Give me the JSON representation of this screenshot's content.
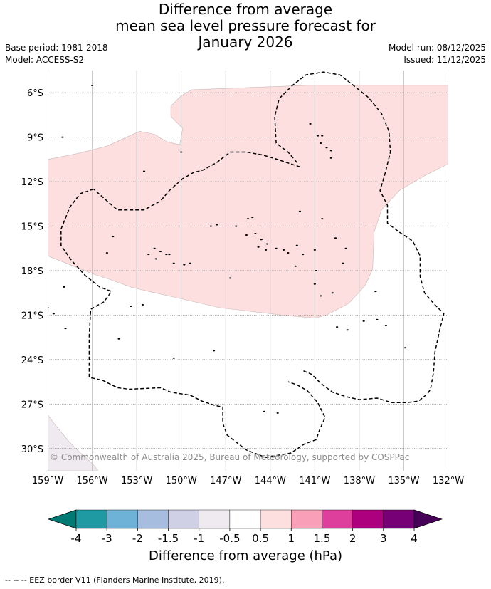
{
  "title": {
    "line1": "Difference from average",
    "line2": "mean sea level pressure forecast for",
    "line3": "January 2026"
  },
  "meta": {
    "base_period": "Base period: 1981-2018",
    "model": "Model: ACCESS-S2",
    "model_run": "Model run: 08/12/2025",
    "issued": "Issued: 11/12/2025"
  },
  "map": {
    "lon_range": [
      -159,
      -132
    ],
    "lat_range": [
      -31.5,
      -4.5
    ],
    "lat_ticks": [
      {
        "value": -6,
        "label": "6°S"
      },
      {
        "value": -9,
        "label": "9°S"
      },
      {
        "value": -12,
        "label": "12°S"
      },
      {
        "value": -15,
        "label": "15°S"
      },
      {
        "value": -18,
        "label": "18°S"
      },
      {
        "value": -21,
        "label": "21°S"
      },
      {
        "value": -24,
        "label": "24°S"
      },
      {
        "value": -27,
        "label": "27°S"
      },
      {
        "value": -30,
        "label": "30°S"
      }
    ],
    "lon_ticks": [
      {
        "value": -159,
        "label": "159°W"
      },
      {
        "value": -156,
        "label": "156°W"
      },
      {
        "value": -153,
        "label": "153°W"
      },
      {
        "value": -150,
        "label": "150°W"
      },
      {
        "value": -147,
        "label": "147°W"
      },
      {
        "value": -144,
        "label": "144°W"
      },
      {
        "value": -141,
        "label": "141°W"
      },
      {
        "value": -138,
        "label": "138°W"
      },
      {
        "value": -135,
        "label": "135°W"
      },
      {
        "value": -132,
        "label": "132°W"
      }
    ],
    "copyright": "© Commonwealth of Australia 2025, Bureau of Meteorology, supported by COSPPac",
    "anomaly_regions": [
      {
        "category": "0.5 to 1",
        "color": "#fddfdf",
        "outline": [
          [
            -159,
            -10.5
          ],
          [
            -157,
            -10.1
          ],
          [
            -155,
            -9.6
          ],
          [
            -153.7,
            -9.0
          ],
          [
            -152.8,
            -8.6
          ],
          [
            -151.8,
            -8.8
          ],
          [
            -151.0,
            -9.3
          ],
          [
            -150.1,
            -9.5
          ],
          [
            -149.9,
            -8.4
          ],
          [
            -150.7,
            -7.6
          ],
          [
            -150.7,
            -6.9
          ],
          [
            -150.0,
            -6.2
          ],
          [
            -149.3,
            -5.8
          ],
          [
            -141.5,
            -5.5
          ],
          [
            -134,
            -5.5
          ],
          [
            -132,
            -5.5
          ],
          [
            -132,
            -10.8
          ],
          [
            -133.6,
            -11.6
          ],
          [
            -135.3,
            -12.6
          ],
          [
            -136.5,
            -13.9
          ],
          [
            -137.0,
            -15.4
          ],
          [
            -137.1,
            -17.9
          ],
          [
            -137.6,
            -19.0
          ],
          [
            -138.7,
            -20.2
          ],
          [
            -140.2,
            -21.0
          ],
          [
            -141.0,
            -21.2
          ],
          [
            -143.2,
            -21.0
          ],
          [
            -147.4,
            -20.5
          ],
          [
            -150.0,
            -19.9
          ],
          [
            -152.2,
            -19.4
          ],
          [
            -153.4,
            -19.1
          ],
          [
            -154.8,
            -18.6
          ],
          [
            -156.0,
            -18.2
          ],
          [
            -157.5,
            -17.6
          ],
          [
            -159,
            -17.0
          ]
        ]
      },
      {
        "category": "-1 to -0.5",
        "color": "#efeaef",
        "outline": [
          [
            -159,
            -31.5
          ],
          [
            -159,
            -27.7
          ],
          [
            -158.5,
            -28.4
          ],
          [
            -157.5,
            -29.6
          ],
          [
            -156.8,
            -30.3
          ],
          [
            -156.0,
            -31.0
          ],
          [
            -155.6,
            -31.5
          ]
        ]
      }
    ],
    "eez_borders": [
      [
        [
          -155.9,
          -12.5
        ],
        [
          -156.8,
          -12.8
        ],
        [
          -157.5,
          -13.7
        ],
        [
          -158.1,
          -15.2
        ],
        [
          -158.1,
          -16.3
        ],
        [
          -157.4,
          -17.3
        ],
        [
          -156.5,
          -18.3
        ],
        [
          -155.5,
          -19.1
        ],
        [
          -154.7,
          -19.4
        ],
        [
          -155.2,
          -20.1
        ],
        [
          -156.1,
          -20.6
        ],
        [
          -156.2,
          -22.4
        ],
        [
          -156.2,
          -25.2
        ],
        [
          -155.3,
          -25.4
        ],
        [
          -154.3,
          -25.9
        ],
        [
          -153.5,
          -26.0
        ],
        [
          -151.4,
          -25.9
        ],
        [
          -150.7,
          -26.2
        ],
        [
          -149.4,
          -26.4
        ],
        [
          -148.6,
          -26.8
        ],
        [
          -147.7,
          -27.1
        ],
        [
          -147.2,
          -27.2
        ],
        [
          -147.2,
          -28.3
        ],
        [
          -146.9,
          -29.1
        ],
        [
          -145.6,
          -30.1
        ],
        [
          -144.3,
          -30.6
        ],
        [
          -142.6,
          -30.3
        ],
        [
          -141.7,
          -29.7
        ],
        [
          -140.9,
          -29.4
        ],
        [
          -140.7,
          -28.8
        ],
        [
          -140.3,
          -27.9
        ],
        [
          -140.8,
          -26.9
        ],
        [
          -141.5,
          -26.1
        ],
        [
          -142.2,
          -25.7
        ],
        [
          -142.8,
          -25.5
        ]
      ],
      [
        [
          -142.2,
          -10.7
        ],
        [
          -142.8,
          -10.0
        ],
        [
          -143.6,
          -9.4
        ],
        [
          -143.7,
          -7.6
        ],
        [
          -143.4,
          -6.4
        ],
        [
          -142.5,
          -5.5
        ],
        [
          -141.6,
          -4.8
        ],
        [
          -140.4,
          -4.6
        ],
        [
          -139.3,
          -4.8
        ],
        [
          -138.4,
          -5.5
        ],
        [
          -137.4,
          -6.3
        ],
        [
          -136.5,
          -7.4
        ],
        [
          -136.0,
          -8.6
        ],
        [
          -135.9,
          -10.0
        ],
        [
          -136.3,
          -11.6
        ],
        [
          -136.6,
          -12.6
        ],
        [
          -136.1,
          -13.6
        ],
        [
          -136.1,
          -14.8
        ],
        [
          -135.3,
          -15.4
        ],
        [
          -134.4,
          -16.0
        ],
        [
          -133.9,
          -17.0
        ],
        [
          -133.9,
          -18.4
        ],
        [
          -133.6,
          -19.5
        ],
        [
          -132.9,
          -20.3
        ],
        [
          -132.3,
          -20.9
        ],
        [
          -132.6,
          -22.1
        ],
        [
          -132.9,
          -23.5
        ],
        [
          -133.0,
          -24.9
        ],
        [
          -133.2,
          -26.0
        ],
        [
          -133.4,
          -26.3
        ],
        [
          -134.0,
          -26.8
        ],
        [
          -134.8,
          -26.9
        ],
        [
          -135.8,
          -26.9
        ],
        [
          -136.8,
          -26.6
        ],
        [
          -138.0,
          -26.7
        ],
        [
          -138.9,
          -26.5
        ],
        [
          -139.8,
          -26.2
        ],
        [
          -140.6,
          -25.6
        ],
        [
          -141.2,
          -25.0
        ],
        [
          -141.9,
          -24.7
        ]
      ],
      [
        [
          -142.0,
          -11.0
        ],
        [
          -143.5,
          -10.5
        ],
        [
          -144.5,
          -10.2
        ],
        [
          -145.6,
          -10.0
        ],
        [
          -146.7,
          -10.0
        ],
        [
          -147.6,
          -10.7
        ],
        [
          -148.5,
          -11.2
        ],
        [
          -149.2,
          -11.4
        ],
        [
          -149.9,
          -11.8
        ],
        [
          -150.8,
          -12.6
        ],
        [
          -151.4,
          -13.3
        ],
        [
          -152.5,
          -13.9
        ],
        [
          -153.3,
          -13.9
        ],
        [
          -154.3,
          -13.9
        ],
        [
          -155.0,
          -13.3
        ],
        [
          -155.9,
          -12.5
        ]
      ]
    ],
    "islands": [
      [
        -158.0,
        -9.0
      ],
      [
        -156.0,
        -5.5
      ],
      [
        -150.0,
        -10.0
      ],
      [
        -152.5,
        -11.3
      ],
      [
        -141.3,
        -8.1
      ],
      [
        -140.5,
        -8.9
      ],
      [
        -140.8,
        -8.9
      ],
      [
        -140.6,
        -9.4
      ],
      [
        -140.2,
        -9.7
      ],
      [
        -139.9,
        -9.9
      ],
      [
        -139.9,
        -10.4
      ],
      [
        -145.5,
        -14.5
      ],
      [
        -145.2,
        -14.4
      ],
      [
        -146.3,
        -15.0
      ],
      [
        -145.6,
        -15.6
      ],
      [
        -145.0,
        -15.5
      ],
      [
        -144.6,
        -15.9
      ],
      [
        -144.2,
        -16.2
      ],
      [
        -144.8,
        -16.4
      ],
      [
        -144.3,
        -16.6
      ],
      [
        -143.6,
        -16.5
      ],
      [
        -143.1,
        -16.6
      ],
      [
        -142.8,
        -16.8
      ],
      [
        -142.2,
        -16.3
      ],
      [
        -141.8,
        -16.9
      ],
      [
        -141.0,
        -16.6
      ],
      [
        -142.3,
        -17.7
      ],
      [
        -140.9,
        -18.0
      ],
      [
        -141.0,
        -18.9
      ],
      [
        -140.6,
        -19.7
      ],
      [
        -139.8,
        -19.5
      ],
      [
        -139.1,
        -17.5
      ],
      [
        -138.9,
        -16.5
      ],
      [
        -139.6,
        -15.8
      ],
      [
        -147.6,
        -14.9
      ],
      [
        -148.0,
        -15.0
      ],
      [
        -149.4,
        -17.5
      ],
      [
        -149.8,
        -17.6
      ],
      [
        -150.5,
        -17.5
      ],
      [
        -151.4,
        -16.7
      ],
      [
        -151.0,
        -16.9
      ],
      [
        -150.8,
        -16.9
      ],
      [
        -151.8,
        -16.5
      ],
      [
        -151.7,
        -17.2
      ],
      [
        -152.2,
        -16.9
      ],
      [
        -154.6,
        -15.7
      ],
      [
        -155.0,
        -16.8
      ],
      [
        -152.6,
        -20.3
      ],
      [
        -153.4,
        -20.4
      ],
      [
        -157.9,
        -19.1
      ],
      [
        -158.6,
        -20.9
      ],
      [
        -157.8,
        -21.9
      ],
      [
        -154.2,
        -22.6
      ],
      [
        -150.5,
        -23.9
      ],
      [
        -147.8,
        -23.4
      ],
      [
        -144.4,
        -27.5
      ],
      [
        -143.5,
        -27.6
      ],
      [
        -139.5,
        -21.8
      ],
      [
        -138.8,
        -22.0
      ],
      [
        -137.7,
        -21.4
      ],
      [
        -136.8,
        -21.3
      ],
      [
        -136.2,
        -21.7
      ],
      [
        -134.9,
        -23.2
      ],
      [
        -136.9,
        -19.4
      ],
      [
        -146.7,
        -18.5
      ],
      [
        -159.0,
        -20.5
      ],
      [
        -142.0,
        -14.0
      ],
      [
        -140.5,
        -14.5
      ]
    ]
  },
  "colorbar": {
    "label": "Difference from average (hPa)",
    "ticks": [
      "-4",
      "-3",
      "-2",
      "-1.5",
      "-1",
      "-0.5",
      "0.5",
      "1",
      "1.5",
      "2",
      "3",
      "4"
    ],
    "colors": [
      "#017a74",
      "#1f9aa2",
      "#6fb2d7",
      "#a7bddf",
      "#cfd0e6",
      "#efeaef",
      "#ffffff",
      "#fddfdf",
      "#f9a0b8",
      "#de3f9c",
      "#ad007f",
      "#780077",
      "#470058"
    ]
  },
  "footnote": "-- -- -- EEZ border V11 (Flanders Marine Institute, 2019)."
}
